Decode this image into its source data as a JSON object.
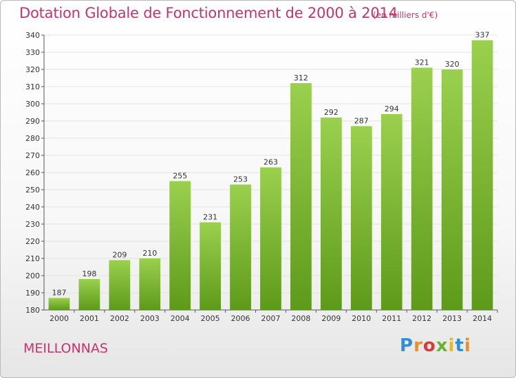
{
  "title": "Dotation Globale de Fonctionnement de 2000 à 2014",
  "unit_note": "(en milliers d'€)",
  "commune": "MEILLONNAS",
  "logo": {
    "text": "Proxiti",
    "colors": [
      "#2f8fd6",
      "#f28c1e",
      "#d63a3a",
      "#66b32e",
      "#e8b923"
    ]
  },
  "colors": {
    "bar_top": "#9ad04e",
    "bar_bottom": "#5e9a1a",
    "title": "#c8336f"
  },
  "chart_data": {
    "type": "bar",
    "title": "Dotation Globale de Fonctionnement de 2000 à 2014",
    "xlabel": "",
    "ylabel": "en milliers d'€",
    "categories": [
      "2000",
      "2001",
      "2002",
      "2003",
      "2004",
      "2005",
      "2006",
      "2007",
      "2008",
      "2009",
      "2010",
      "2011",
      "2012",
      "2013",
      "2014"
    ],
    "values": [
      187,
      198,
      209,
      210,
      255,
      231,
      253,
      263,
      312,
      292,
      287,
      294,
      321,
      320,
      337
    ],
    "ylim": [
      180,
      340
    ],
    "yticks": [
      180,
      190,
      200,
      210,
      220,
      230,
      240,
      250,
      260,
      270,
      280,
      290,
      300,
      310,
      320,
      330,
      340
    ],
    "grid": true
  }
}
